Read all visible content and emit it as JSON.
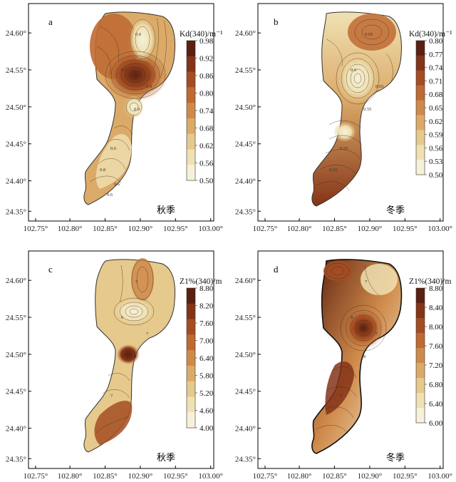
{
  "panels": [
    {
      "letter": "a",
      "season": "秋季",
      "cb_title": "Kd(340)/m⁻¹",
      "cb_ticks": [
        "0.98",
        "0.92",
        "0.86",
        "0.80",
        "0.74",
        "0.68",
        "0.62",
        "0.56",
        "0.50"
      ],
      "contour_labels": [
        "0.6",
        "0.7",
        "0.8",
        "0.9",
        "0.6",
        "0.8",
        "0.6",
        "0.6"
      ],
      "x_ticks": [
        "102.75°",
        "102.80°",
        "102.85°",
        "102.90°",
        "102.95°",
        "103.00°"
      ],
      "y_ticks": [
        "24.60°",
        "24.55°",
        "24.50°",
        "24.45°",
        "24.40°",
        "24.35°"
      ]
    },
    {
      "letter": "b",
      "season": "冬季",
      "cb_title": "Kd(340)/m⁻¹",
      "cb_ticks": [
        "0.80",
        "0.77",
        "0.74",
        "0.71",
        "0.68",
        "0.65",
        "0.62",
        "0.59",
        "0.56",
        "0.53",
        "0.50"
      ],
      "contour_labels": [
        "0.65",
        "0.6",
        "0.65",
        "0.55",
        "0.55",
        "0.65"
      ],
      "x_ticks": [
        "102.75°",
        "102.80°",
        "102.85°",
        "102.90°",
        "102.95°",
        "103.00°"
      ],
      "y_ticks": [
        "24.60°",
        "24.55°",
        "24.50°",
        "24.45°",
        "24.40°",
        "24.35°"
      ]
    },
    {
      "letter": "c",
      "season": "秋季",
      "cb_title": "Z1%(340)/m",
      "cb_ticks": [
        "8.80",
        "8.20",
        "7.60",
        "7.00",
        "6.40",
        "5.80",
        "5.20",
        "4.60",
        "4.00"
      ],
      "contour_labels": [
        "7",
        "6",
        "7",
        "8",
        "7"
      ],
      "x_ticks": [
        "102.75°",
        "102.80°",
        "102.85°",
        "102.90°",
        "102.95°",
        "103.00°"
      ],
      "y_ticks": [
        "24.60°",
        "24.55°",
        "24.50°",
        "24.45°",
        "24.40°",
        "24.35°"
      ]
    },
    {
      "letter": "d",
      "season": "冬季",
      "cb_title": "Z1%(340)/m",
      "cb_ticks": [
        "8.80",
        "8.40",
        "8.00",
        "7.60",
        "7.20",
        "6.80",
        "6.40",
        "6.00"
      ],
      "contour_labels": [
        "7",
        "8",
        "7",
        "8",
        "7"
      ],
      "x_ticks": [
        "102.75°",
        "102.80°",
        "102.85°",
        "102.90°",
        "102.95°",
        "103.00°"
      ],
      "y_ticks": [
        "24.60°",
        "24.55°",
        "24.50°",
        "24.45°",
        "24.40°",
        "24.35°"
      ]
    }
  ],
  "colors": {
    "ramp": [
      "#f6f1d8",
      "#efe1b3",
      "#e6c98c",
      "#dcaa68",
      "#cf8a4a",
      "#bf6a33",
      "#a54d22",
      "#843418",
      "#5c2010"
    ],
    "axis": "#000000"
  }
}
